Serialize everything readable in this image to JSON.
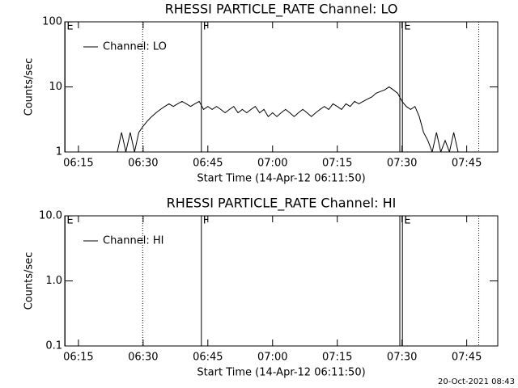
{
  "chart_data": [
    {
      "type": "line",
      "title": "RHESSI PARTICLE_RATE Channel: LO",
      "xlabel": "Start Time (14-Apr-12 06:11:50)",
      "ylabel": "Counts/sec",
      "log_y": true,
      "legend": "upper left",
      "x": [
        24,
        25,
        26,
        27,
        28,
        29,
        30,
        31,
        32,
        33,
        34,
        35,
        36,
        37,
        38,
        39,
        40,
        41,
        42,
        43,
        44,
        45,
        46,
        47,
        48,
        49,
        50,
        51,
        52,
        53,
        54,
        55,
        56,
        57,
        58,
        59,
        60,
        61,
        62,
        63,
        64,
        65,
        66,
        67,
        68,
        69,
        70,
        71,
        72,
        73,
        74,
        75,
        76,
        77,
        78,
        79,
        80,
        81,
        82,
        83,
        84,
        85,
        86,
        87,
        88,
        89,
        90,
        91,
        92,
        93,
        94,
        95,
        96,
        97,
        98,
        99,
        100,
        101,
        102,
        103
      ],
      "series": [
        {
          "name": "Channel: LO",
          "color": "#000000",
          "values": [
            1,
            2,
            1,
            2,
            1,
            2,
            2.5,
            3,
            3.5,
            4,
            4.5,
            5,
            5.5,
            5,
            5.5,
            6,
            5.5,
            5,
            5.5,
            6,
            4.5,
            5,
            4.5,
            5,
            4.5,
            4,
            4.5,
            5,
            4,
            4.5,
            4,
            4.5,
            5,
            4,
            4.5,
            3.5,
            4,
            3.5,
            4,
            4.5,
            4,
            3.5,
            4,
            4.5,
            4,
            3.5,
            4,
            4.5,
            5,
            4.5,
            5.5,
            5,
            4.5,
            5.5,
            5,
            6,
            5.5,
            6,
            6.5,
            7,
            8,
            8.5,
            9,
            10,
            9,
            8,
            6,
            5,
            4.5,
            5,
            3.5,
            2,
            1.5,
            1,
            2,
            1,
            1.5,
            1,
            2,
            1
          ]
        }
      ],
      "xlim": [
        11.83,
        112.2
      ],
      "xticks": [
        {
          "value": 15,
          "label": "06:15"
        },
        {
          "value": 30,
          "label": "06:30"
        },
        {
          "value": 45,
          "label": "06:45"
        },
        {
          "value": 60,
          "label": "07:00"
        },
        {
          "value": 75,
          "label": "07:15"
        },
        {
          "value": 90,
          "label": "07:30"
        },
        {
          "value": 105,
          "label": "07:45"
        }
      ],
      "ylim": [
        1,
        100
      ],
      "yticks": [
        1,
        10,
        100
      ],
      "vlines": [
        {
          "x": 11.9,
          "style": "solid",
          "label": "E"
        },
        {
          "x": 29.9,
          "style": "dotted"
        },
        {
          "x": 43.5,
          "style": "solid",
          "label": "F"
        },
        {
          "x": 89.5,
          "style": "solid"
        },
        {
          "x": 90.1,
          "style": "solid",
          "label": "E"
        },
        {
          "x": 107.8,
          "style": "dotted"
        }
      ]
    },
    {
      "type": "line",
      "title": "RHESSI PARTICLE_RATE Channel: HI",
      "xlabel": "Start Time (14-Apr-12 06:11:50)",
      "ylabel": "Counts/sec",
      "log_y": true,
      "legend": "upper left",
      "x": [],
      "series": [
        {
          "name": "Channel: HI",
          "color": "#000000",
          "values": []
        }
      ],
      "xlim": [
        11.83,
        112.2
      ],
      "xticks": [
        {
          "value": 15,
          "label": "06:15"
        },
        {
          "value": 30,
          "label": "06:30"
        },
        {
          "value": 45,
          "label": "06:45"
        },
        {
          "value": 60,
          "label": "07:00"
        },
        {
          "value": 75,
          "label": "07:15"
        },
        {
          "value": 90,
          "label": "07:30"
        },
        {
          "value": 105,
          "label": "07:45"
        }
      ],
      "ylim": [
        0.1,
        10
      ],
      "yticks": [
        0.1,
        {
          "value": 1,
          "label": "1.0"
        },
        {
          "value": 10,
          "label": "10.0"
        }
      ],
      "vlines": [
        {
          "x": 11.9,
          "style": "solid",
          "label": "E"
        },
        {
          "x": 29.9,
          "style": "dotted"
        },
        {
          "x": 43.5,
          "style": "solid",
          "label": "F"
        },
        {
          "x": 89.5,
          "style": "solid"
        },
        {
          "x": 90.1,
          "style": "solid",
          "label": "E"
        },
        {
          "x": 107.8,
          "style": "dotted"
        }
      ]
    }
  ],
  "footer": "20-Oct-2021 08:43"
}
